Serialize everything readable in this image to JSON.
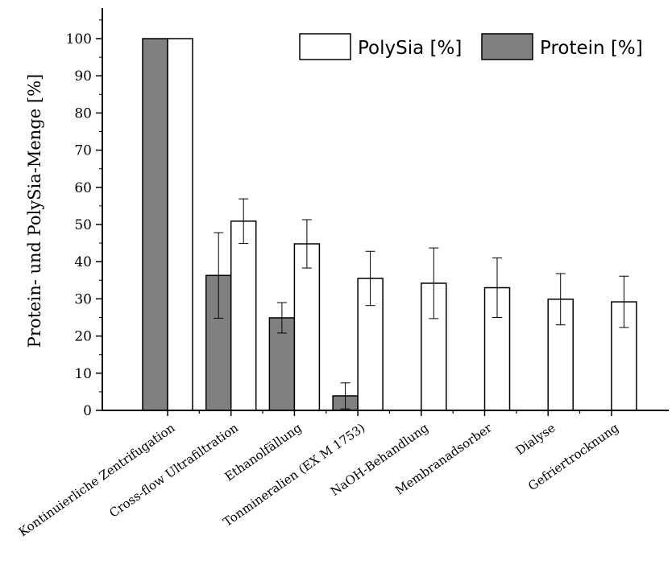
{
  "chart_data": {
    "type": "bar",
    "title": "",
    "xlabel": "",
    "ylabel": "Protein- und PolySia-Menge [%]",
    "ylim": [
      0,
      108
    ],
    "yticks": [
      0,
      10,
      20,
      30,
      40,
      50,
      60,
      70,
      80,
      90,
      100
    ],
    "grid": false,
    "legend_position": "top-right",
    "categories": [
      "Kontinuierliche Zentrifugation",
      "Cross-flow Ultrafiltration",
      "Ethanolfällung",
      "Tonmineralien (EX M 1753)",
      "NaOH-Behandlung",
      "Membranadsorber",
      "Dialyse",
      "Gefriertrocknung"
    ],
    "series": [
      {
        "name": "Protein [%]",
        "color": "#808080",
        "values": [
          100,
          36.3,
          24.9,
          3.9,
          null,
          null,
          null,
          null
        ],
        "errors": [
          0,
          11.5,
          4.1,
          3.5,
          null,
          null,
          null,
          null
        ]
      },
      {
        "name": "PolySia [%]",
        "color": "#ffffff",
        "values": [
          100,
          50.9,
          44.8,
          35.5,
          34.2,
          33.0,
          29.9,
          29.2
        ],
        "errors": [
          0,
          6.0,
          6.5,
          7.3,
          9.5,
          8.0,
          6.9,
          6.9
        ]
      }
    ],
    "legend": [
      "PolySia [%]",
      "Protein [%]"
    ]
  }
}
